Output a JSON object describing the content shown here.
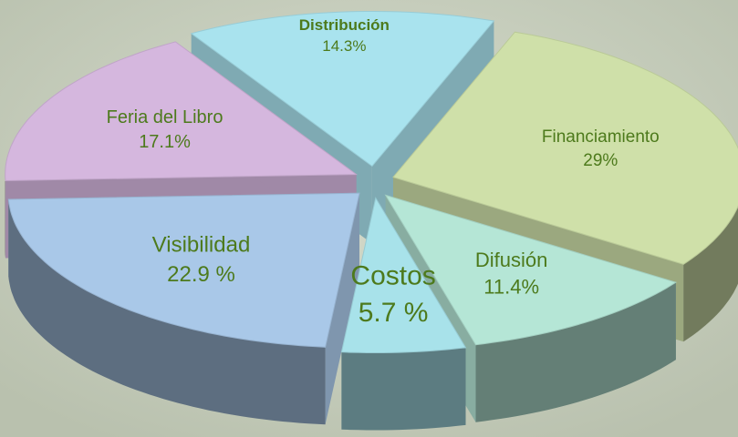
{
  "chart_data": {
    "type": "pie",
    "labels": [
      "Distribución",
      "Financiamiento",
      "Difusión",
      "Costos",
      "Visibilidad",
      "Feria del Libro"
    ],
    "values": [
      14.3,
      29,
      11.4,
      5.7,
      22.9,
      17.1
    ],
    "value_labels": [
      "14.3%",
      "29%",
      "11.4%",
      "5.7 %",
      "22.9 %",
      "17.1%"
    ],
    "colors": [
      "#a9e3ee",
      "#cfe0a9",
      "#b5e6d6",
      "#a8e2ea",
      "#a9c8e8",
      "#d5b7de"
    ]
  }
}
